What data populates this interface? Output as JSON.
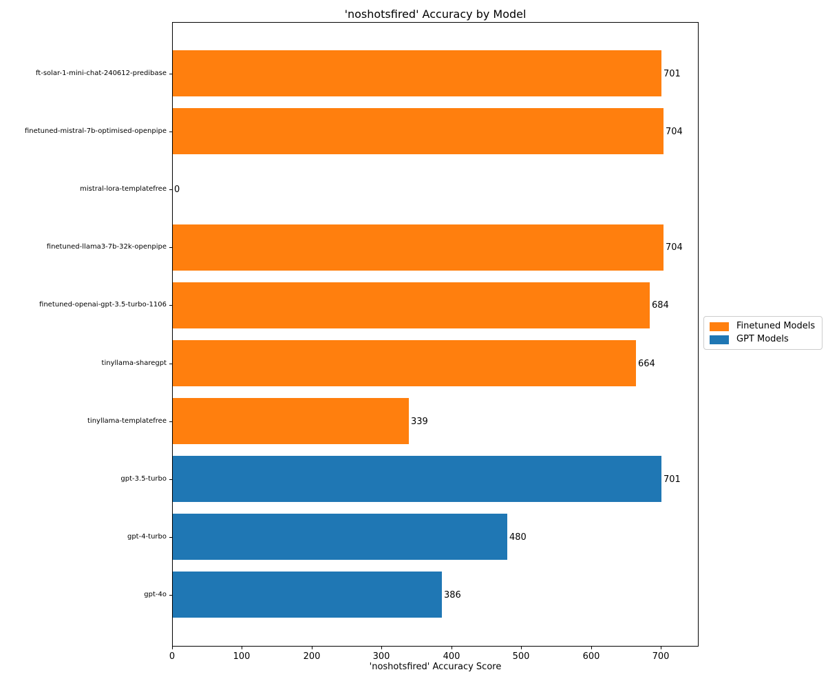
{
  "chart_data": {
    "type": "bar",
    "orientation": "horizontal",
    "title": "'noshotsfired' Accuracy by Model",
    "xlabel": "'noshotsfired' Accuracy Score",
    "ylabel": "",
    "xlim": [
      0,
      754
    ],
    "xticks": [
      0,
      100,
      200,
      300,
      400,
      500,
      600,
      700
    ],
    "grid": false,
    "bar_value_labels_shown": true,
    "categories": [
      "ft-solar-1-mini-chat-240612-predibase",
      "finetuned-mistral-7b-optimised-openpipe",
      "mistral-lora-templatefree",
      "finetuned-llama3-7b-32k-openpipe",
      "finetuned-openai-gpt-3.5-turbo-1106",
      "tinyllama-sharegpt",
      "tinyllama-templatefree",
      "gpt-3.5-turbo",
      "gpt-4-turbo",
      "gpt-4o"
    ],
    "values": [
      701,
      704,
      0,
      704,
      684,
      664,
      339,
      701,
      480,
      386
    ],
    "groups": [
      "Finetuned Models",
      "Finetuned Models",
      "Finetuned Models",
      "Finetuned Models",
      "Finetuned Models",
      "Finetuned Models",
      "Finetuned Models",
      "GPT Models",
      "GPT Models",
      "GPT Models"
    ],
    "legend": {
      "position": "center-right-outside",
      "entries": [
        {
          "label": "Finetuned Models",
          "color": "#ff7f0e"
        },
        {
          "label": "GPT Models",
          "color": "#1f77b4"
        }
      ]
    }
  }
}
